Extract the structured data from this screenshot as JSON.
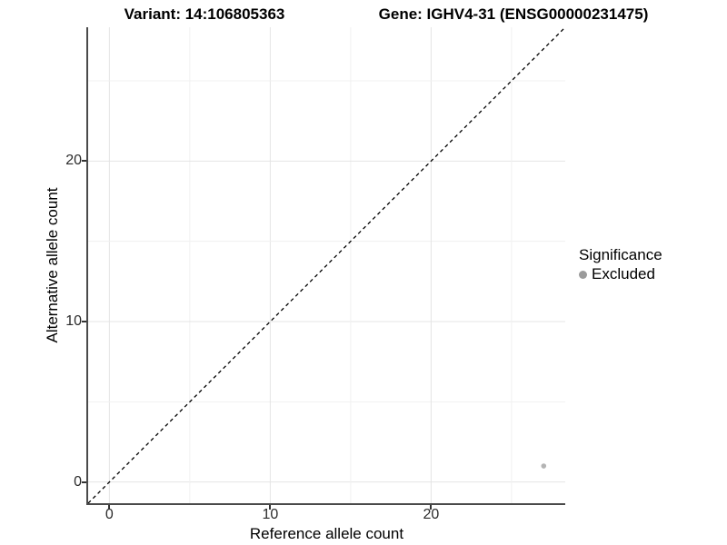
{
  "chart_data": {
    "type": "scatter",
    "title_left": "Variant: 14:106805363",
    "title_right": "Gene: IGHV4-31 (ENSG00000231475)",
    "xlabel": "Reference allele count",
    "ylabel": "Alternative allele count",
    "xlim": [
      -1.32,
      28.34
    ],
    "ylim": [
      -1.32,
      28.34
    ],
    "x_ticks": [
      0,
      10,
      20
    ],
    "y_ticks": [
      0,
      10,
      20
    ],
    "grid_values": [
      0,
      5,
      10,
      15,
      20,
      25
    ],
    "grid": "on",
    "identity_line": {
      "style": "dashed",
      "color": "#000000",
      "note": "y = x reference line"
    },
    "legend": {
      "title": "Significance",
      "position": "right",
      "entries": [
        {
          "label": "Excluded",
          "color": "#9b9b9b"
        }
      ]
    },
    "series": [
      {
        "name": "Excluded",
        "color": "#b4b4b4",
        "points": [
          {
            "x": 27,
            "y": 1
          }
        ]
      }
    ],
    "colors": {
      "axis_line": "#4a4a4a",
      "tick_mark": "#333333",
      "grid_major": "#e4e4e4",
      "grid_minor": "#f1f1f1",
      "background": "#ffffff"
    }
  }
}
